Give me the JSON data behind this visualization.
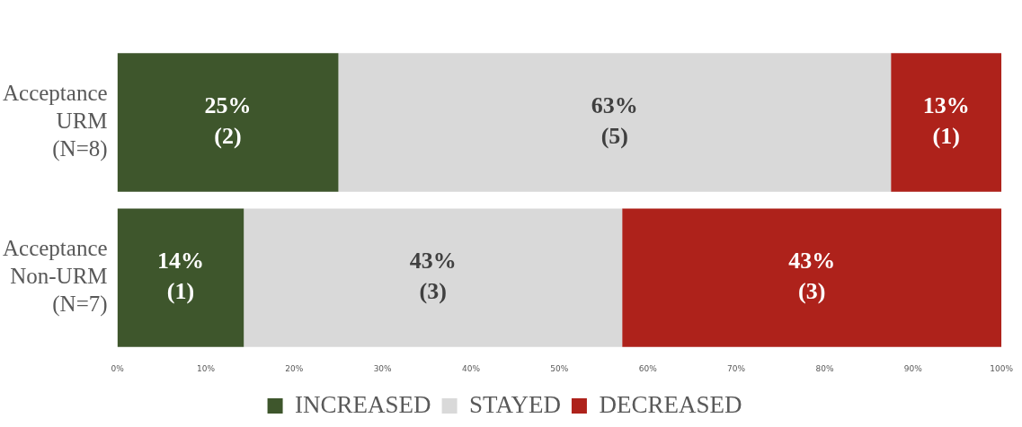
{
  "chart_data": {
    "type": "bar",
    "orientation": "horizontal",
    "stacked": true,
    "categories": [
      "Acceptance URM (N=8)",
      "Acceptance Non-URM (N=7)"
    ],
    "series": [
      {
        "name": "INCREASED",
        "color": "#3e562c",
        "values": [
          25,
          14.3
        ],
        "value_labels": [
          "25% (2)",
          "14% (1)"
        ]
      },
      {
        "name": "STAYED",
        "color": "#d9d9d9",
        "values": [
          62.5,
          42.8
        ],
        "value_labels": [
          "63% (5)",
          "43% (3)"
        ]
      },
      {
        "name": "DECREASED",
        "color": "#ae221b",
        "values": [
          12.5,
          42.9
        ],
        "value_labels": [
          "13% (1)",
          "43% (3)"
        ]
      }
    ],
    "xlim": [
      0,
      100
    ],
    "xticks": [
      {
        "value": 0,
        "label": "0%"
      },
      {
        "value": 10,
        "label": "10%"
      },
      {
        "value": 20,
        "label": "20%"
      },
      {
        "value": 30,
        "label": "30%"
      },
      {
        "value": 40,
        "label": "40%"
      },
      {
        "value": 50,
        "label": "50%"
      },
      {
        "value": 60,
        "label": "60%"
      },
      {
        "value": 70,
        "label": "70%"
      },
      {
        "value": 80,
        "label": "80%"
      },
      {
        "value": 90,
        "label": "90%"
      },
      {
        "value": 100,
        "label": "100%"
      }
    ],
    "legend": "bottom",
    "grid": false
  }
}
